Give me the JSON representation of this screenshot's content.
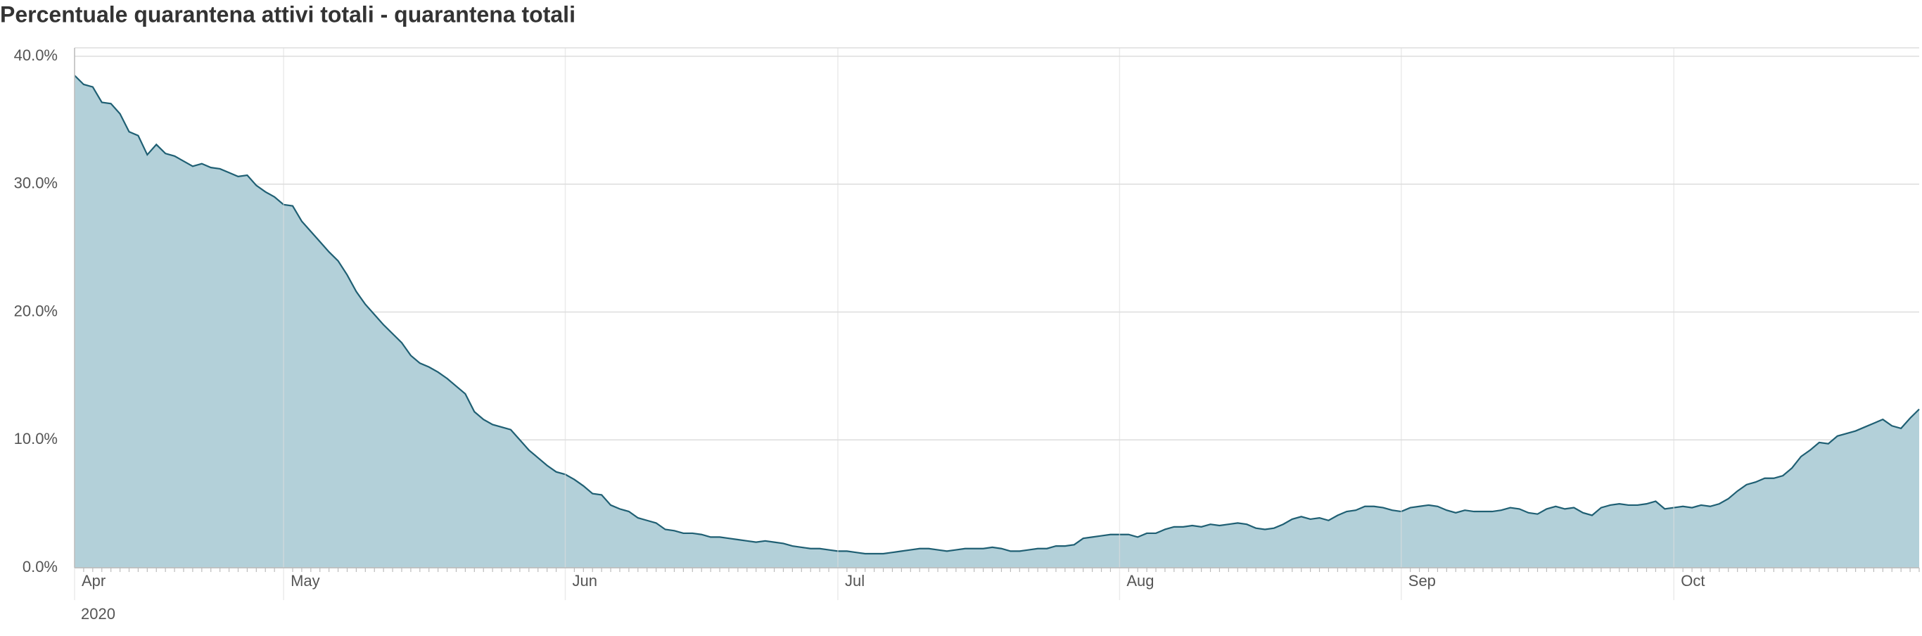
{
  "chart_data": {
    "type": "area",
    "title": "Percentuale quarantena attivi totali - quarantena totali",
    "year_label": "2020",
    "categories": [
      "Apr",
      null,
      null,
      null,
      null,
      null,
      null,
      null,
      null,
      null,
      null,
      null,
      null,
      null,
      null,
      null,
      null,
      null,
      null,
      null,
      null,
      null,
      null,
      "May",
      null,
      null,
      null,
      null,
      null,
      null,
      null,
      null,
      null,
      null,
      null,
      null,
      null,
      null,
      null,
      null,
      null,
      null,
      null,
      null,
      null,
      null,
      null,
      null,
      null,
      null,
      null,
      null,
      null,
      null,
      "Jun",
      null,
      null,
      null,
      null,
      null,
      null,
      null,
      null,
      null,
      null,
      null,
      null,
      null,
      null,
      null,
      null,
      null,
      null,
      null,
      null,
      null,
      null,
      null,
      null,
      null,
      null,
      null,
      null,
      null,
      "Jul",
      null,
      null,
      null,
      null,
      null,
      null,
      null,
      null,
      null,
      null,
      null,
      null,
      null,
      null,
      null,
      null,
      null,
      null,
      null,
      null,
      null,
      null,
      null,
      null,
      null,
      null,
      null,
      null,
      null,
      null,
      "Aug",
      null,
      null,
      null,
      null,
      null,
      null,
      null,
      null,
      null,
      null,
      null,
      null,
      null,
      null,
      null,
      null,
      null,
      null,
      null,
      null,
      null,
      null,
      null,
      null,
      null,
      null,
      null,
      null,
      null,
      null,
      "Sep",
      null,
      null,
      null,
      null,
      null,
      null,
      null,
      null,
      null,
      null,
      null,
      null,
      null,
      null,
      null,
      null,
      null,
      null,
      null,
      null,
      null,
      null,
      null,
      null,
      null,
      null,
      null,
      null,
      null,
      "Oct",
      null,
      null,
      null,
      null,
      null,
      null,
      null,
      null,
      null,
      null,
      null,
      null,
      null,
      null,
      null,
      null,
      null,
      null,
      null,
      null,
      null,
      null,
      null,
      null,
      null,
      null,
      null
    ],
    "values": [
      38.5,
      37.8,
      37.6,
      36.4,
      36.3,
      35.5,
      34.1,
      33.8,
      32.3,
      33.1,
      32.4,
      32.2,
      31.8,
      31.4,
      31.6,
      31.3,
      31.2,
      30.9,
      30.6,
      30.7,
      29.9,
      29.4,
      29.0,
      28.4,
      28.3,
      27.1,
      26.3,
      25.5,
      24.7,
      24.0,
      22.9,
      21.6,
      20.6,
      19.8,
      19.0,
      18.3,
      17.6,
      16.6,
      16.0,
      15.7,
      15.3,
      14.8,
      14.2,
      13.6,
      12.2,
      11.6,
      11.2,
      11.0,
      10.8,
      10.0,
      9.2,
      8.6,
      8.0,
      7.5,
      7.3,
      6.9,
      6.4,
      5.8,
      5.7,
      4.9,
      4.6,
      4.4,
      3.9,
      3.7,
      3.5,
      3.0,
      2.9,
      2.7,
      2.7,
      2.6,
      2.4,
      2.4,
      2.3,
      2.2,
      2.1,
      2.0,
      2.1,
      2.0,
      1.9,
      1.7,
      1.6,
      1.5,
      1.5,
      1.4,
      1.3,
      1.3,
      1.2,
      1.1,
      1.1,
      1.1,
      1.2,
      1.3,
      1.4,
      1.5,
      1.5,
      1.4,
      1.3,
      1.4,
      1.5,
      1.5,
      1.5,
      1.6,
      1.5,
      1.3,
      1.3,
      1.4,
      1.5,
      1.5,
      1.7,
      1.7,
      1.8,
      2.3,
      2.4,
      2.5,
      2.6,
      2.6,
      2.6,
      2.4,
      2.7,
      2.7,
      3.0,
      3.2,
      3.2,
      3.3,
      3.2,
      3.4,
      3.3,
      3.4,
      3.5,
      3.4,
      3.1,
      3.0,
      3.1,
      3.4,
      3.8,
      4.0,
      3.8,
      3.9,
      3.7,
      4.1,
      4.4,
      4.5,
      4.8,
      4.8,
      4.7,
      4.5,
      4.4,
      4.7,
      4.8,
      4.9,
      4.8,
      4.5,
      4.3,
      4.5,
      4.4,
      4.4,
      4.4,
      4.5,
      4.7,
      4.6,
      4.3,
      4.2,
      4.6,
      4.8,
      4.6,
      4.7,
      4.3,
      4.1,
      4.7,
      4.9,
      5.0,
      4.9,
      4.9,
      5.0,
      5.2,
      4.6,
      4.7,
      4.8,
      4.7,
      4.9,
      4.8,
      5.0,
      5.4,
      6.0,
      6.5,
      6.7,
      7.0,
      7.0,
      7.2,
      7.8,
      8.7,
      9.2,
      9.8,
      9.7,
      10.3,
      10.5,
      10.7,
      11.0,
      11.3,
      11.6,
      11.1,
      10.9,
      11.7,
      12.4
    ],
    "color": "#b3d0d9",
    "line_color": "#1f5f73",
    "ylim": [
      0,
      40
    ],
    "yticks": [
      {
        "value": 0,
        "label": "0.0%"
      },
      {
        "value": 10,
        "label": "10.0%"
      },
      {
        "value": 20,
        "label": "20.0%"
      },
      {
        "value": 30,
        "label": "30.0%"
      },
      {
        "value": 40,
        "label": "40.0%"
      }
    ],
    "grid": true
  }
}
